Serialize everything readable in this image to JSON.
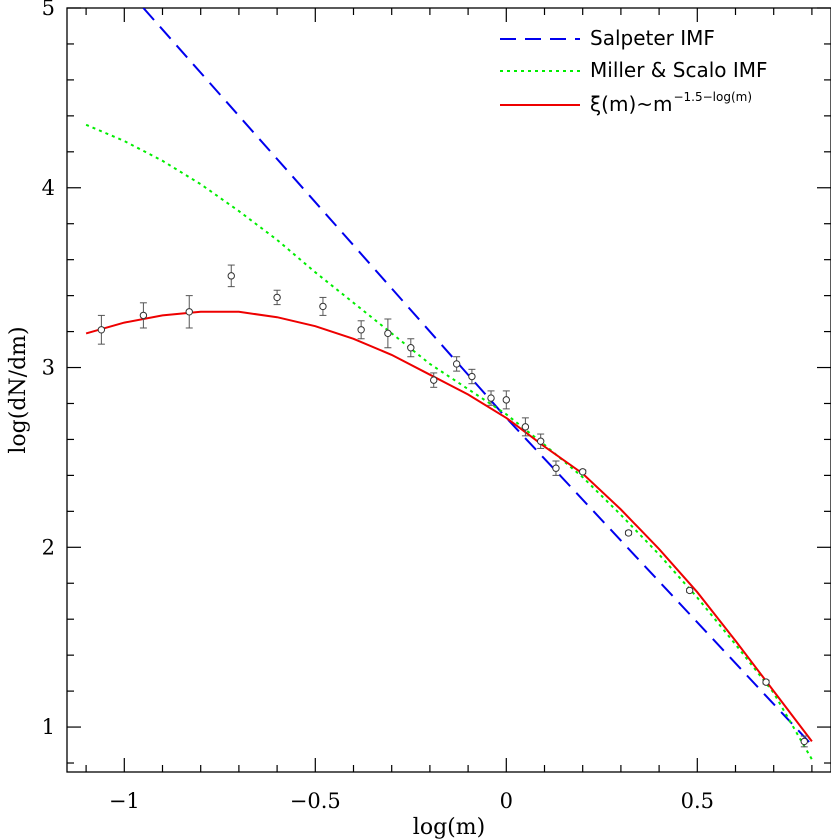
{
  "chart_data": {
    "type": "line",
    "xlabel": "log(m)",
    "ylabel": "log(dN/dm)",
    "xlim": [
      -1.15,
      0.85
    ],
    "ylim": [
      0.75,
      5.0
    ],
    "x_ticks": [
      -1,
      -0.5,
      0,
      0.5
    ],
    "x_tick_labels": [
      "−1",
      "−0.5",
      "0",
      "0.5"
    ],
    "y_ticks": [
      1,
      2,
      3,
      4,
      5
    ],
    "y_tick_labels": [
      "1",
      "2",
      "3",
      "4",
      "5"
    ],
    "grid": false,
    "legend_position": "top-right",
    "series": [
      {
        "name": "Salpeter IMF",
        "color": "#0000ee",
        "style": "dashed",
        "points": [
          [
            -0.95,
            5.0
          ],
          [
            0.0,
            2.72
          ],
          [
            0.8,
            0.9
          ]
        ]
      },
      {
        "name": "Miller & Scalo IMF",
        "color": "#00ee00",
        "style": "dotted",
        "points": [
          [
            -1.1,
            4.35
          ],
          [
            -1.0,
            4.26
          ],
          [
            -0.9,
            4.15
          ],
          [
            -0.8,
            4.02
          ],
          [
            -0.7,
            3.87
          ],
          [
            -0.6,
            3.71
          ],
          [
            -0.5,
            3.53
          ],
          [
            -0.4,
            3.36
          ],
          [
            -0.3,
            3.19
          ],
          [
            -0.2,
            3.02
          ],
          [
            -0.1,
            2.88
          ],
          [
            0.0,
            2.74
          ],
          [
            0.1,
            2.57
          ],
          [
            0.2,
            2.39
          ],
          [
            0.3,
            2.18
          ],
          [
            0.4,
            1.96
          ],
          [
            0.5,
            1.72
          ],
          [
            0.6,
            1.46
          ],
          [
            0.7,
            1.19
          ],
          [
            0.8,
            0.82
          ]
        ]
      },
      {
        "name": "ξ(m)~m",
        "superscript": "−1.5−log(m)",
        "color": "#ee0000",
        "style": "solid",
        "points": [
          [
            -1.1,
            3.19
          ],
          [
            -1.0,
            3.25
          ],
          [
            -0.9,
            3.29
          ],
          [
            -0.8,
            3.31
          ],
          [
            -0.75,
            3.31
          ],
          [
            -0.7,
            3.31
          ],
          [
            -0.6,
            3.28
          ],
          [
            -0.5,
            3.23
          ],
          [
            -0.4,
            3.16
          ],
          [
            -0.3,
            3.07
          ],
          [
            -0.2,
            2.96
          ],
          [
            -0.1,
            2.85
          ],
          [
            0.0,
            2.72
          ],
          [
            0.1,
            2.56
          ],
          [
            0.2,
            2.41
          ],
          [
            0.3,
            2.21
          ],
          [
            0.4,
            1.99
          ],
          [
            0.5,
            1.75
          ],
          [
            0.6,
            1.48
          ],
          [
            0.7,
            1.2
          ],
          [
            0.8,
            0.92
          ]
        ]
      }
    ],
    "data_points": {
      "marker": "open-circle",
      "color": "#000000",
      "points": [
        {
          "x": -1.06,
          "y": 3.21,
          "err": 0.08
        },
        {
          "x": -0.95,
          "y": 3.29,
          "err": 0.07
        },
        {
          "x": -0.83,
          "y": 3.31,
          "err": 0.09
        },
        {
          "x": -0.72,
          "y": 3.51,
          "err": 0.06
        },
        {
          "x": -0.6,
          "y": 3.39,
          "err": 0.04
        },
        {
          "x": -0.48,
          "y": 3.34,
          "err": 0.05
        },
        {
          "x": -0.38,
          "y": 3.21,
          "err": 0.05
        },
        {
          "x": -0.31,
          "y": 3.19,
          "err": 0.08
        },
        {
          "x": -0.25,
          "y": 3.11,
          "err": 0.05
        },
        {
          "x": -0.19,
          "y": 2.93,
          "err": 0.04
        },
        {
          "x": -0.13,
          "y": 3.02,
          "err": 0.04
        },
        {
          "x": -0.09,
          "y": 2.95,
          "err": 0.04
        },
        {
          "x": -0.04,
          "y": 2.83,
          "err": 0.04
        },
        {
          "x": 0.0,
          "y": 2.82,
          "err": 0.05
        },
        {
          "x": 0.05,
          "y": 2.67,
          "err": 0.05
        },
        {
          "x": 0.09,
          "y": 2.59,
          "err": 0.04
        },
        {
          "x": 0.13,
          "y": 2.44,
          "err": 0.04
        },
        {
          "x": 0.2,
          "y": 2.42,
          "err": 0.01
        },
        {
          "x": 0.32,
          "y": 2.08,
          "err": 0.01
        },
        {
          "x": 0.48,
          "y": 1.76,
          "err": 0.01
        },
        {
          "x": 0.68,
          "y": 1.25,
          "err": 0.01
        },
        {
          "x": 0.78,
          "y": 0.92,
          "err": 0.03
        }
      ]
    }
  }
}
